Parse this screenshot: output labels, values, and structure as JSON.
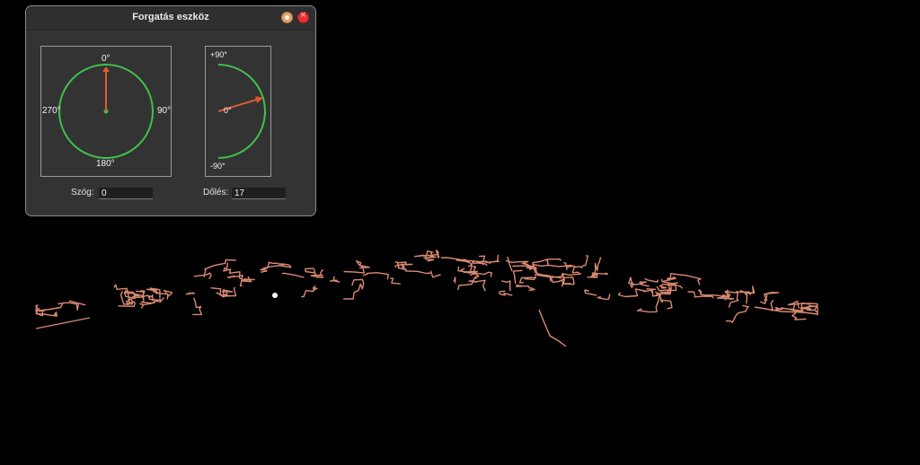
{
  "window": {
    "title": "Forgatás eszköz"
  },
  "rotation_dial": {
    "label_top": "0°",
    "label_right": "90°",
    "label_bottom": "180°",
    "label_left": "270°",
    "value": 0
  },
  "tilt_dial": {
    "label_top": "+90°",
    "label_center": "0°",
    "label_bottom": "-90°",
    "value": 17
  },
  "fields": {
    "angle_label": "Szög:",
    "angle_value": "0",
    "tilt_label": "Dőlés:",
    "tilt_value": "17"
  },
  "colors": {
    "ring": "#3fbf4f",
    "arrow": "#e05a2b",
    "network": "#d98a72",
    "pivot": "#ffffff"
  },
  "icons": {
    "minimize": "minimize-circle-icon",
    "close": "close-icon"
  }
}
